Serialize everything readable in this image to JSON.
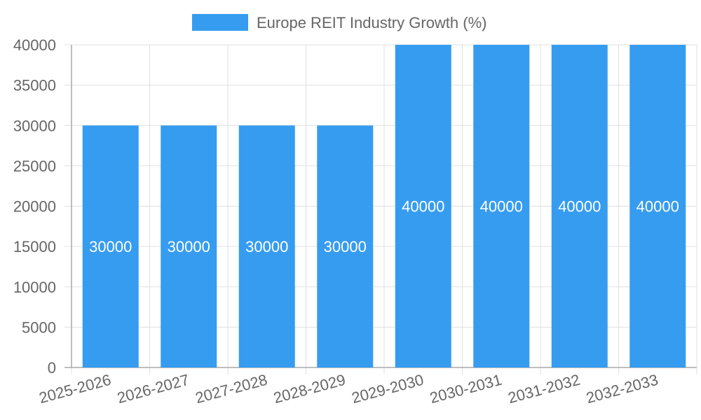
{
  "chart_data": {
    "type": "bar",
    "categories": [
      "2025-2026",
      "2026-2027",
      "2027-2028",
      "2028-2029",
      "2029-2030",
      "2030-2031",
      "2031-2032",
      "2032-2033"
    ],
    "series": [
      {
        "name": "Europe REIT Industry Growth (%)",
        "values": [
          30000,
          30000,
          30000,
          30000,
          40000,
          40000,
          40000,
          40000
        ],
        "color": "#369cf0"
      }
    ],
    "ylim": [
      0,
      40000
    ],
    "yticks": [
      0,
      5000,
      10000,
      15000,
      20000,
      25000,
      30000,
      35000,
      40000
    ],
    "grid": true,
    "legend_position": "top-center",
    "data_labels": true,
    "colors": {
      "grid": "#e0e0e0",
      "axis": "#a9a9a9",
      "text": "#666666",
      "label": "#ffffff"
    }
  }
}
